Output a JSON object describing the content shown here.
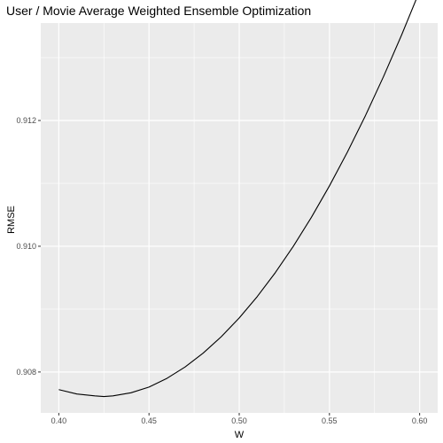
{
  "chart_data": {
    "type": "line",
    "title": "User / Movie Average Weighted Ensemble Optimization",
    "xlabel": "W",
    "ylabel": "RMSE",
    "xlim": [
      0.39,
      0.61
    ],
    "ylim": [
      0.90735,
      0.91355
    ],
    "xticks": [
      0.4,
      0.45,
      0.5,
      0.55,
      0.6
    ],
    "xtick_labels": [
      "0.40",
      "0.45",
      "0.50",
      "0.55",
      "0.60"
    ],
    "yticks": [
      0.908,
      0.91,
      0.912
    ],
    "ytick_labels": [
      "0.908",
      "0.910",
      "0.912"
    ],
    "grid": true,
    "series": [
      {
        "x": [
          0.4,
          0.41,
          0.42,
          0.425,
          0.43,
          0.44,
          0.45,
          0.46,
          0.47,
          0.48,
          0.49,
          0.5,
          0.51,
          0.52,
          0.53,
          0.54,
          0.55,
          0.56,
          0.57,
          0.58,
          0.59,
          0.6
        ],
        "y": [
          0.90772,
          0.90765,
          0.90762,
          0.90761,
          0.90762,
          0.90767,
          0.90776,
          0.9079,
          0.90808,
          0.9083,
          0.90856,
          0.90886,
          0.9092,
          0.90958,
          0.91,
          0.91046,
          0.91096,
          0.9115,
          0.91208,
          0.9127,
          0.91336,
          0.91406
        ],
        "color": "#000000"
      }
    ]
  }
}
